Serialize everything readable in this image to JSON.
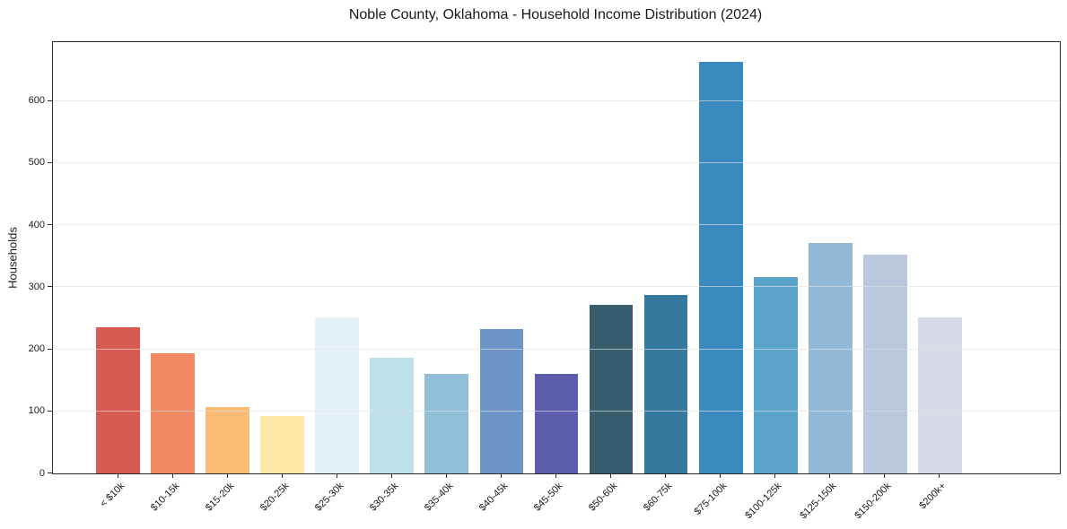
{
  "chart": {
    "title": "Noble County, Oklahoma - Household Income Distribution (2024)",
    "ylabel": "Households"
  },
  "chart_data": {
    "type": "bar",
    "title": "Noble County, Oklahoma - Household Income Distribution (2024)",
    "xlabel": "",
    "ylabel": "Households",
    "categories": [
      "< $10k",
      "$10-15k",
      "$15-20k",
      "$20-25k",
      "$25-30k",
      "$30-35k",
      "$35-40k",
      "$40-45k",
      "$45-50k",
      "$50-60k",
      "$60-75k",
      "$75-100k",
      "$100-125k",
      "$125-150k",
      "$150-200k",
      "$200k+"
    ],
    "values": [
      235,
      194,
      107,
      92,
      252,
      187,
      160,
      233,
      161,
      272,
      288,
      663,
      316,
      371,
      353,
      252
    ],
    "bar_colors": [
      "#d65a50",
      "#f18a62",
      "#fabc74",
      "#fce9a8",
      "#e4f1f7",
      "#bfe1ec",
      "#90bed9",
      "#6c94c6",
      "#5c5dac",
      "#375d6e",
      "#35779d",
      "#3a8abf",
      "#5ba4c9",
      "#92b8d7",
      "#b9c8de",
      "#d8dae7"
    ],
    "ylim": [
      0,
      695
    ],
    "yticks": [
      0,
      100,
      200,
      300,
      400,
      500,
      600
    ],
    "grid": "horizontal-light",
    "legend": "none",
    "x_tick_rotation": 45,
    "background": "#ffffff"
  }
}
